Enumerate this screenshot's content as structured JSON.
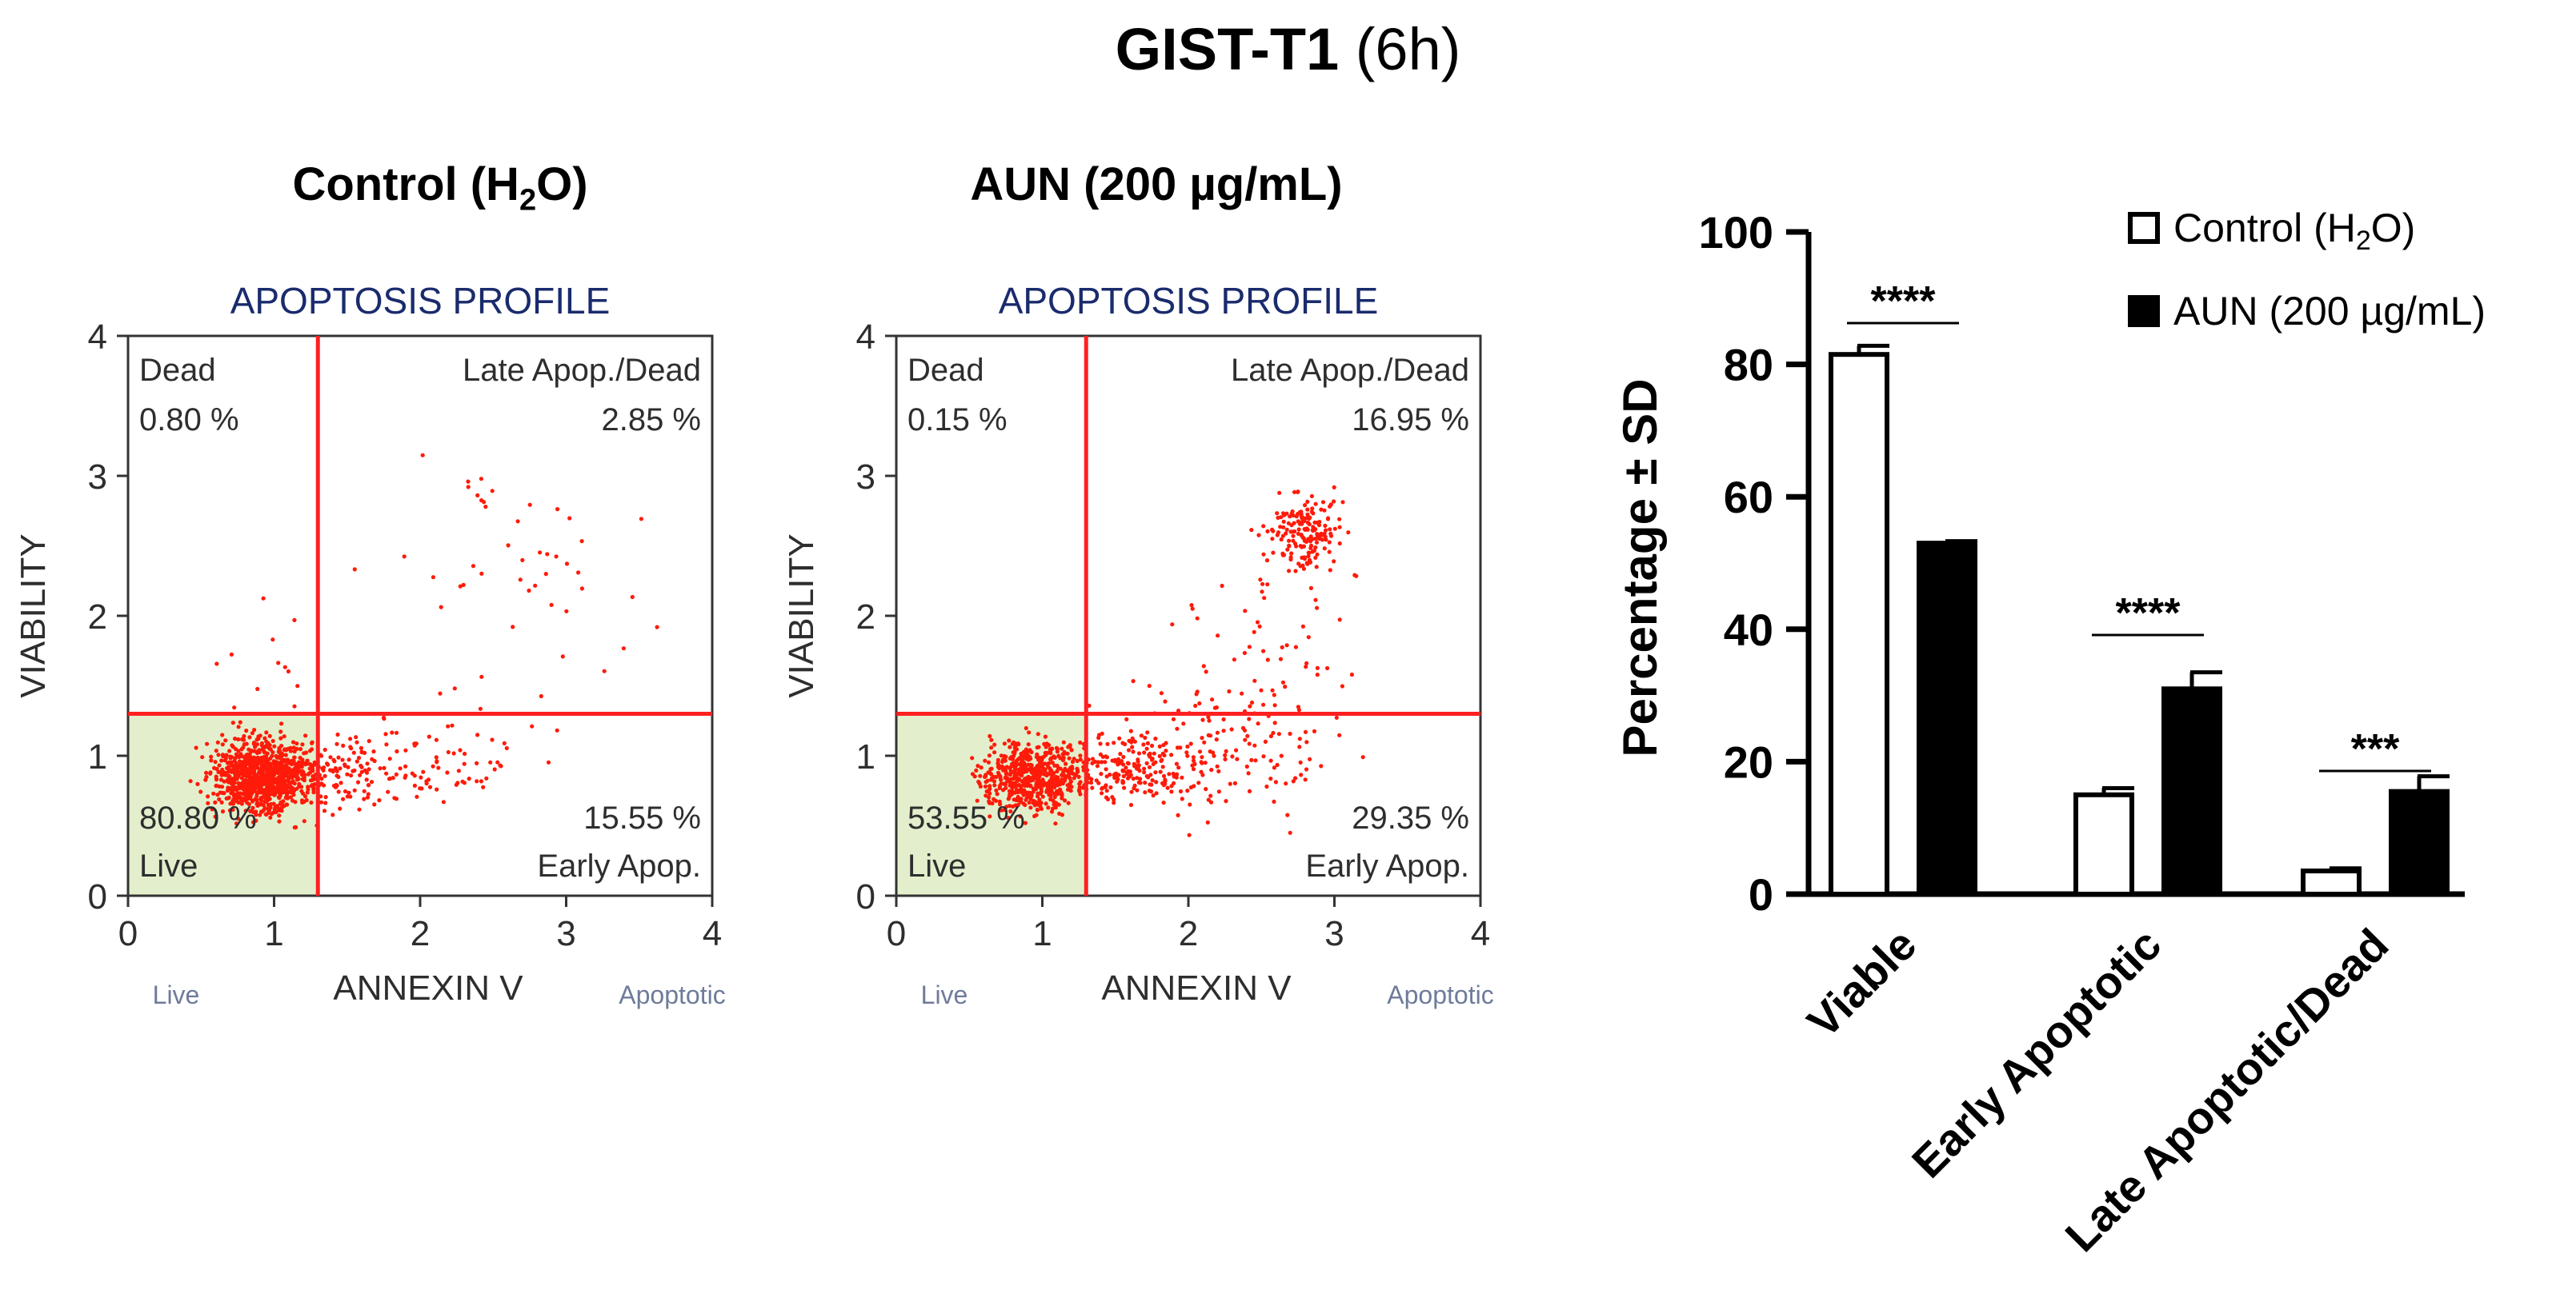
{
  "figure": {
    "title_bold": "GIST-T1",
    "title_rest": " (6h)"
  },
  "panels": {
    "control_title": {
      "main": "Control (H",
      "sub": "2",
      "end": "O)"
    },
    "aun_title": "AUN (200 µg/mL)"
  },
  "chart_data": [
    {
      "type": "scatter",
      "id": "control",
      "title": "APOPTOSIS PROFILE",
      "xlabel": "ANNEXIN V",
      "ylabel": "VIABILITY",
      "x_left_label": "Live",
      "x_right_label": "Apoptotic",
      "xlim": [
        0,
        4
      ],
      "ylim": [
        0,
        4
      ],
      "xticks": [
        0,
        1,
        2,
        3,
        4
      ],
      "yticks": [
        0,
        1,
        2,
        3,
        4
      ],
      "gates": {
        "x": 1.3,
        "y": 1.3
      },
      "quadrants": {
        "top_left": {
          "name": "Dead",
          "value": "0.80 %"
        },
        "top_right": {
          "name": "Late Apop./Dead",
          "value": "2.85 %"
        },
        "bottom_left": {
          "name": "Live",
          "value": "80.80 %"
        },
        "bottom_right": {
          "name": "Early Apop.",
          "value": "15.55 %"
        }
      },
      "clusters": [
        {
          "cx": 0.9,
          "cy": 0.85,
          "sx": 0.16,
          "sy": 0.13,
          "n": 900
        },
        {
          "cx": 1.3,
          "cy": 0.85,
          "sx": 0.25,
          "sy": 0.1,
          "n": 160
        },
        {
          "cx": 2.0,
          "cy": 0.95,
          "sx": 0.4,
          "sy": 0.15,
          "n": 90
        },
        {
          "cx": 2.7,
          "cy": 2.2,
          "sx": 0.45,
          "sy": 0.5,
          "n": 50
        },
        {
          "cx": 0.9,
          "cy": 1.6,
          "sx": 0.25,
          "sy": 0.3,
          "n": 15
        }
      ],
      "seed": 7
    },
    {
      "type": "scatter",
      "id": "aun",
      "title": "APOPTOSIS PROFILE",
      "xlabel": "ANNEXIN V",
      "ylabel": "VIABILITY",
      "x_left_label": "Live",
      "x_right_label": "Apoptotic",
      "xlim": [
        0,
        4
      ],
      "ylim": [
        0,
        4
      ],
      "xticks": [
        0,
        1,
        2,
        3,
        4
      ],
      "yticks": [
        0,
        1,
        2,
        3,
        4
      ],
      "gates": {
        "x": 1.3,
        "y": 1.3
      },
      "quadrants": {
        "top_left": {
          "name": "Dead",
          "value": "0.15 %"
        },
        "top_right": {
          "name": "Late Apop./Dead",
          "value": "16.95 %"
        },
        "bottom_left": {
          "name": "Live",
          "value": "53.55 %"
        },
        "bottom_right": {
          "name": "Early Apop.",
          "value": "29.35 %"
        }
      },
      "clusters": [
        {
          "cx": 0.9,
          "cy": 0.85,
          "sx": 0.16,
          "sy": 0.12,
          "n": 520
        },
        {
          "cx": 1.5,
          "cy": 0.9,
          "sx": 0.3,
          "sy": 0.12,
          "n": 260
        },
        {
          "cx": 2.3,
          "cy": 1.1,
          "sx": 0.35,
          "sy": 0.25,
          "n": 130
        },
        {
          "cx": 2.8,
          "cy": 2.6,
          "sx": 0.12,
          "sy": 0.12,
          "n": 170
        },
        {
          "cx": 2.55,
          "cy": 1.9,
          "sx": 0.3,
          "sy": 0.35,
          "n": 50
        }
      ],
      "seed": 13
    },
    {
      "type": "bar",
      "id": "summary",
      "ylabel": "Percentage ± SD",
      "ylim": [
        0,
        100
      ],
      "yticks": [
        0,
        20,
        40,
        60,
        80,
        100
      ],
      "categories": [
        "Viable",
        "Early Apoptotic",
        "Late Apoptotic/Dead"
      ],
      "series": [
        {
          "name": "Control (H₂O)",
          "legend_main": "Control (H",
          "legend_sub": "2",
          "legend_end": "O)",
          "fill": "#ffffff",
          "values": [
            81.5,
            15,
            3.5
          ],
          "sd": [
            1.3,
            1.0,
            0.4
          ]
        },
        {
          "name": "AUN (200 µg/mL)",
          "fill": "#000000",
          "values": [
            53,
            31,
            15.5
          ],
          "sd": [
            0.3,
            2.5,
            2.3
          ]
        }
      ],
      "significance": [
        "****",
        "****",
        "***"
      ]
    }
  ]
}
